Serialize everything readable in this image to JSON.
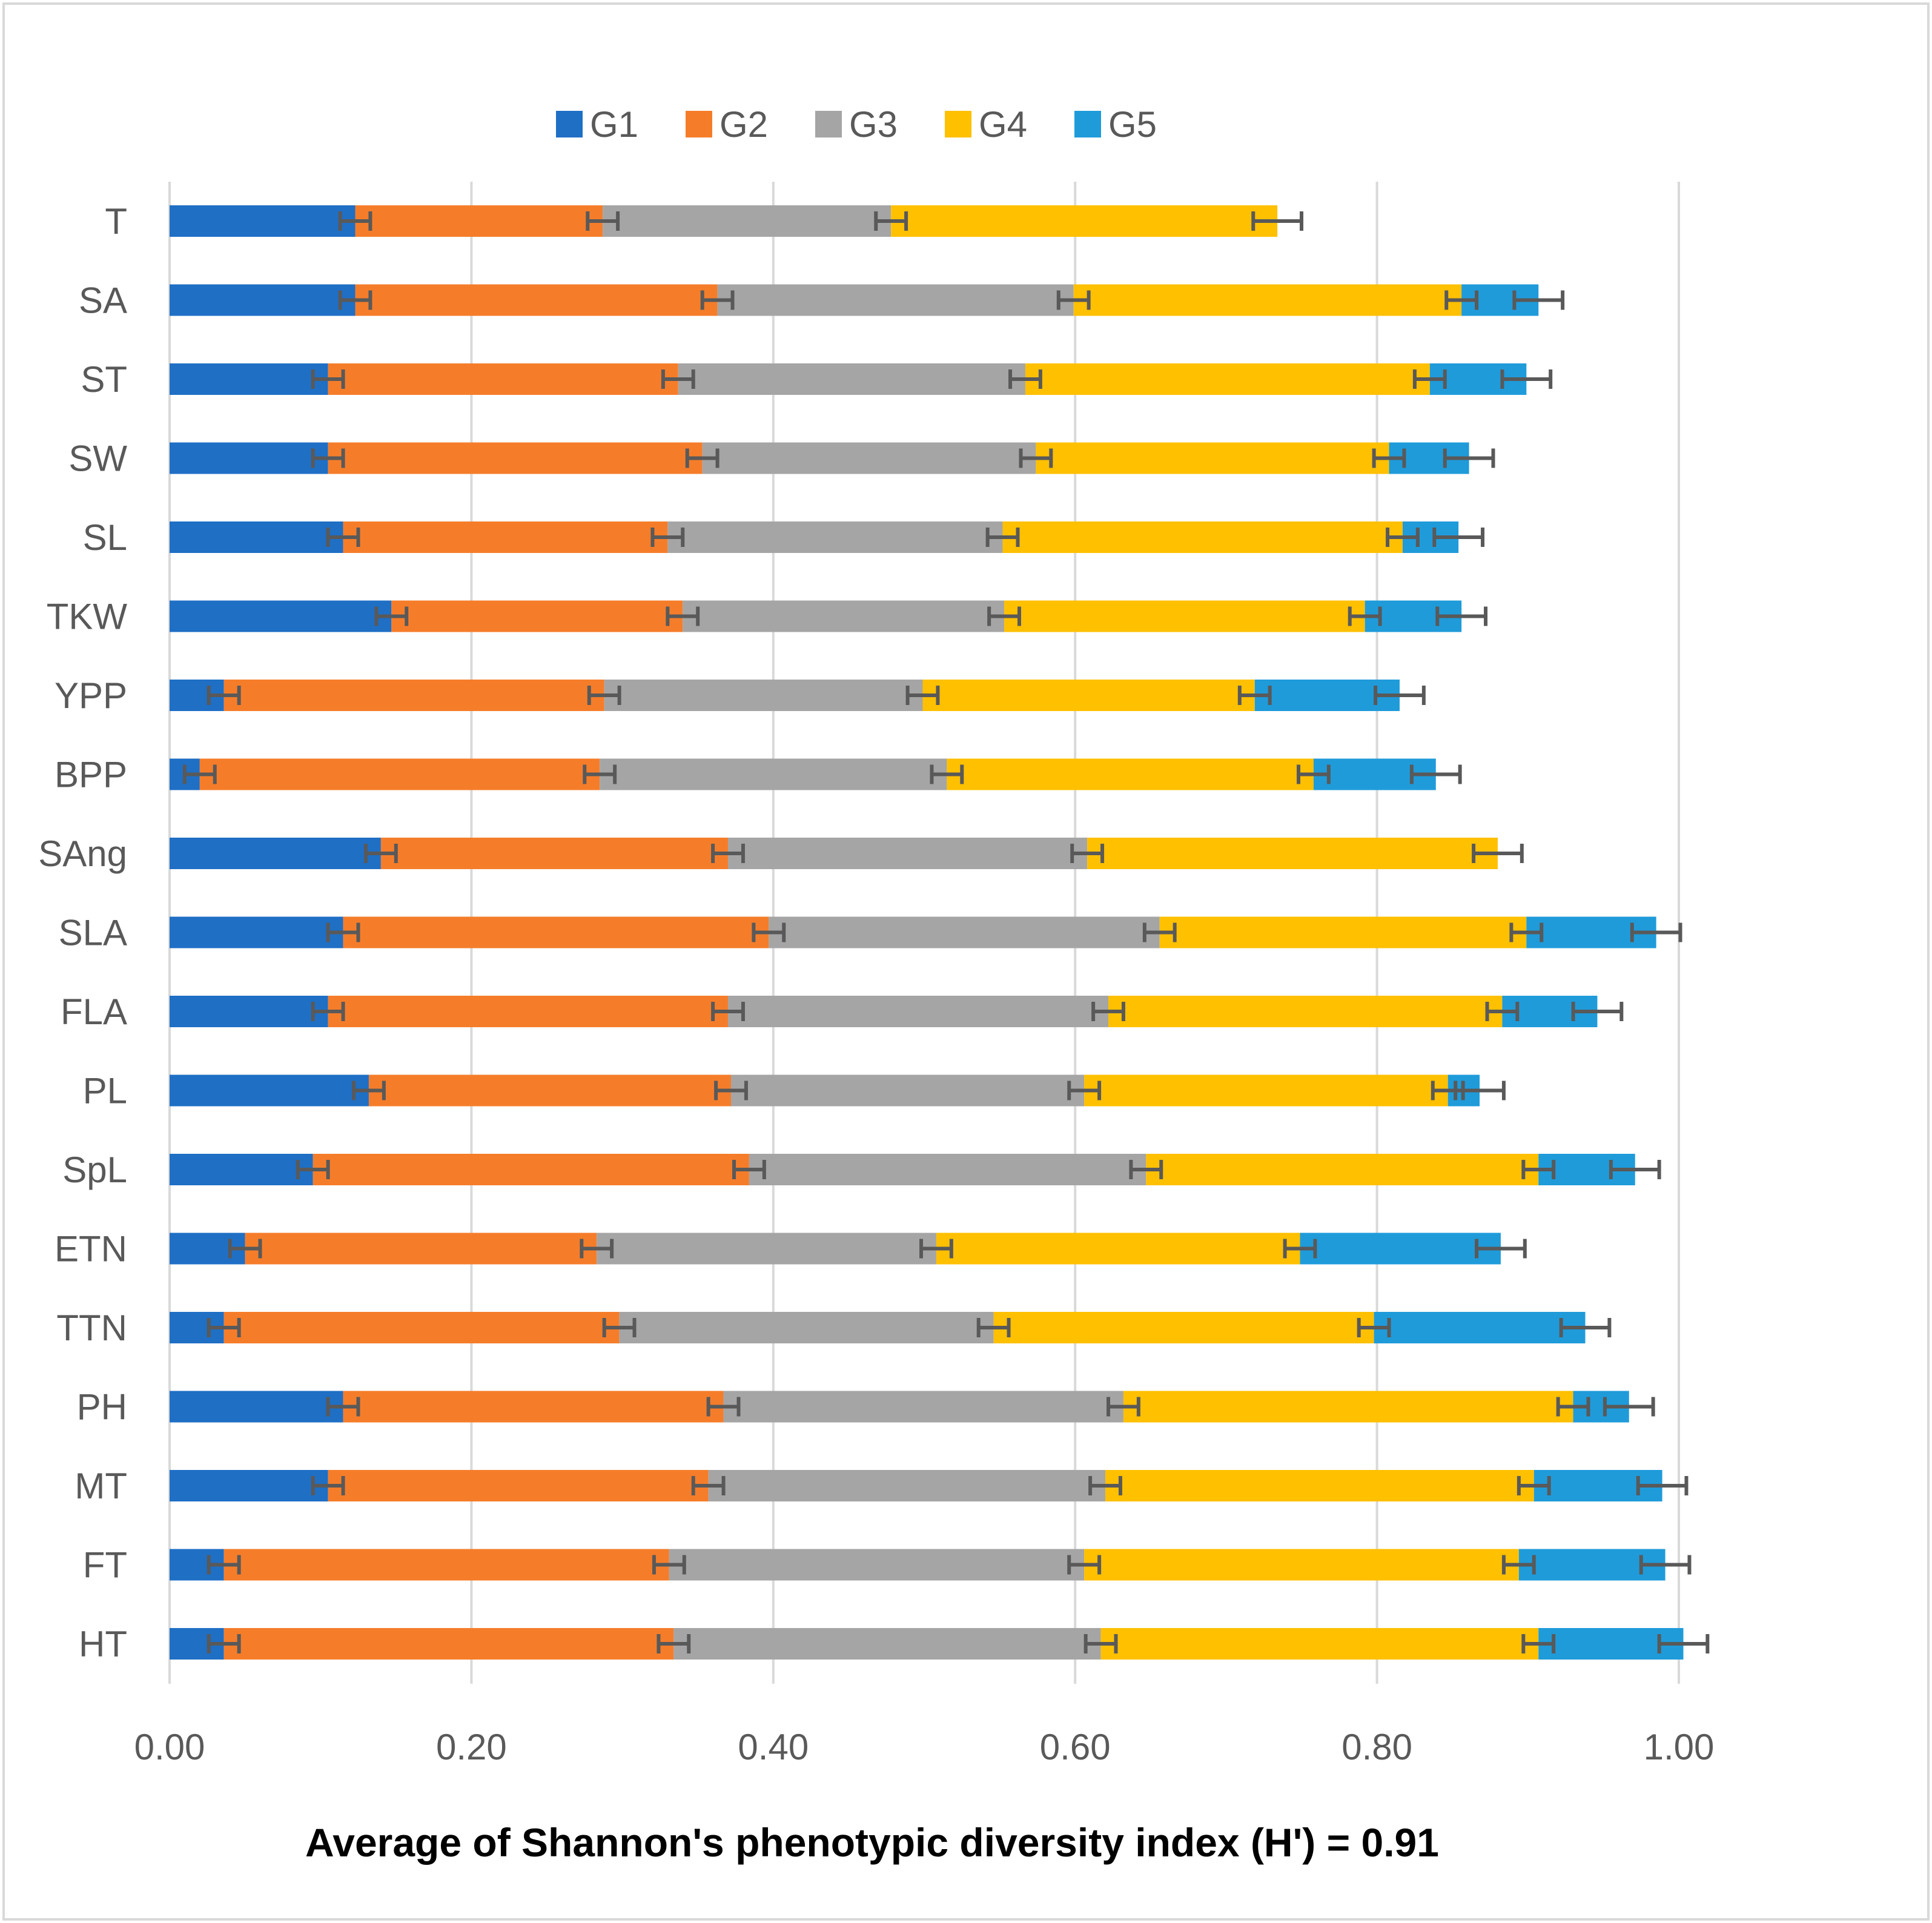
{
  "chart_data": {
    "type": "bar",
    "orientation": "horizontal",
    "stacked": true,
    "caption": "Average of Shannon's phenotypic diversity index (H') = 0.91",
    "xlim": [
      0,
      1
    ],
    "xticks": [
      "0.00",
      "0.20",
      "0.40",
      "0.60",
      "0.80",
      "1.00"
    ],
    "xtick_values": [
      0,
      0.2,
      0.4,
      0.6,
      0.8,
      1.0
    ],
    "grid": true,
    "legend_position": "top",
    "categories": [
      "T",
      "SA",
      "ST",
      "SW",
      "SL",
      "TKW",
      "YPP",
      "BPP",
      "SAng",
      "SLA",
      "FLA",
      "PL",
      "SpL",
      "ETN",
      "TTN",
      "PH",
      "MT",
      "FT",
      "HT"
    ],
    "series": [
      {
        "name": "G1",
        "color": "#1F6FC5",
        "values": [
          0.123,
          0.123,
          0.105,
          0.105,
          0.115,
          0.147,
          0.036,
          0.02,
          0.14,
          0.115,
          0.105,
          0.132,
          0.095,
          0.05,
          0.036,
          0.115,
          0.105,
          0.036,
          0.036
        ],
        "errors": [
          0.01,
          0.01,
          0.01,
          0.01,
          0.01,
          0.01,
          0.01,
          0.01,
          0.01,
          0.01,
          0.01,
          0.01,
          0.01,
          0.01,
          0.01,
          0.01,
          0.01,
          0.01,
          0.01
        ]
      },
      {
        "name": "G2",
        "color": "#F57D2A",
        "values": [
          0.164,
          0.24,
          0.232,
          0.248,
          0.215,
          0.193,
          0.252,
          0.265,
          0.23,
          0.282,
          0.265,
          0.24,
          0.289,
          0.233,
          0.262,
          0.252,
          0.252,
          0.295,
          0.298
        ],
        "errors": [
          0.01,
          0.01,
          0.01,
          0.01,
          0.01,
          0.01,
          0.01,
          0.01,
          0.01,
          0.01,
          0.01,
          0.01,
          0.01,
          0.01,
          0.01,
          0.01,
          0.01,
          0.01,
          0.01
        ]
      },
      {
        "name": "G3",
        "color": "#A5A5A5",
        "values": [
          0.191,
          0.236,
          0.23,
          0.221,
          0.222,
          0.213,
          0.211,
          0.23,
          0.238,
          0.259,
          0.252,
          0.234,
          0.263,
          0.225,
          0.248,
          0.265,
          0.263,
          0.275,
          0.283
        ],
        "errors": [
          0.01,
          0.01,
          0.01,
          0.01,
          0.01,
          0.01,
          0.01,
          0.01,
          0.01,
          0.01,
          0.01,
          0.01,
          0.01,
          0.01,
          0.01,
          0.01,
          0.01,
          0.01,
          0.01
        ]
      },
      {
        "name": "G4",
        "color": "#FFC000",
        "values": [
          0.256,
          0.257,
          0.268,
          0.234,
          0.265,
          0.239,
          0.22,
          0.243,
          0.272,
          0.243,
          0.261,
          0.241,
          0.26,
          0.241,
          0.252,
          0.298,
          0.284,
          0.288,
          0.29
        ],
        "errors": [
          0.01,
          0.01,
          0.01,
          0.01,
          0.01,
          0.01,
          0.01,
          0.01,
          0.01,
          0.01,
          0.01,
          0.01,
          0.01,
          0.01,
          0.01,
          0.01,
          0.01,
          0.01,
          0.01
        ]
      },
      {
        "name": "G5",
        "color": "#1F9BDA",
        "values": [
          0.0,
          0.051,
          0.064,
          0.053,
          0.037,
          0.064,
          0.096,
          0.081,
          0.0,
          0.086,
          0.063,
          0.021,
          0.064,
          0.133,
          0.14,
          0.037,
          0.085,
          0.097,
          0.096
        ],
        "errors": [
          0.0,
          0.01,
          0.01,
          0.01,
          0.01,
          0.01,
          0.01,
          0.01,
          0.0,
          0.01,
          0.01,
          0.01,
          0.01,
          0.01,
          0.01,
          0.01,
          0.01,
          0.01,
          0.01
        ]
      }
    ],
    "total_error": 0.016
  }
}
